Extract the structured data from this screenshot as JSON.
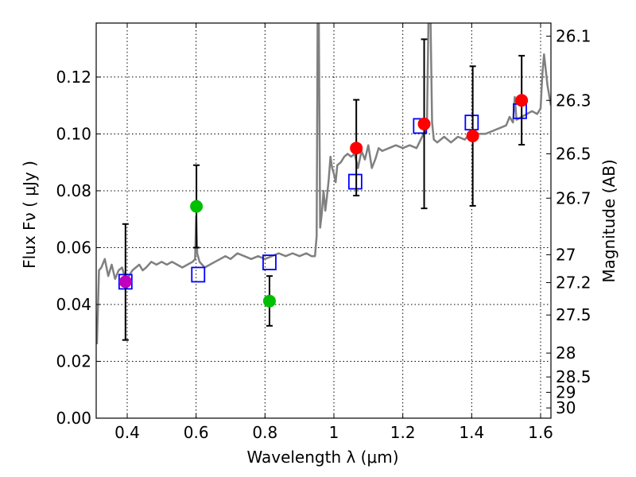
{
  "chart_data": {
    "type": "scatter",
    "xlabel": "Wavelength  λ (μm)",
    "ylabel_left": "Flux  Fν  ( μJy )",
    "ylabel_right": "Magnitude (AB)",
    "xlim": [
      0.31,
      1.63
    ],
    "ylim": [
      0.0,
      0.139
    ],
    "x_ticks": [
      0.4,
      0.6,
      0.8,
      1.0,
      1.2,
      1.4,
      1.6
    ],
    "x_tick_labels": [
      "0.4",
      "0.6",
      "0.8",
      "1",
      "1.2",
      "1.4",
      "1.6"
    ],
    "y_ticks": [
      0.0,
      0.02,
      0.04,
      0.06,
      0.08,
      0.1,
      0.12
    ],
    "y_tick_labels": [
      "0.00",
      "0.02",
      "0.04",
      "0.06",
      "0.08",
      "0.10",
      "0.12"
    ],
    "right_ticks": [
      {
        "label": "26.1",
        "flux": 0.1344
      },
      {
        "label": "26.3",
        "flux": 0.1118
      },
      {
        "label": "26.5",
        "flux": 0.093
      },
      {
        "label": "26.7",
        "flux": 0.0774
      },
      {
        "label": "27",
        "flux": 0.0575
      },
      {
        "label": "27.2",
        "flux": 0.0477
      },
      {
        "label": "27.5",
        "flux": 0.0363
      },
      {
        "label": "28",
        "flux": 0.0229
      },
      {
        "label": "28.5",
        "flux": 0.0145
      },
      {
        "label": "29",
        "flux": 0.0091
      },
      {
        "label": "30",
        "flux": 0.0036
      }
    ],
    "grid": true,
    "observed_points": [
      {
        "x": 0.395,
        "y": 0.048,
        "yerr_low": 0.0275,
        "yerr_high": 0.0683,
        "color": "#bf00bf"
      },
      {
        "x": 0.601,
        "y": 0.0745,
        "yerr_low": 0.06,
        "yerr_high": 0.089,
        "color": "#00bf00"
      },
      {
        "x": 0.813,
        "y": 0.0412,
        "yerr_low": 0.0325,
        "yerr_high": 0.05,
        "color": "#00bf00"
      },
      {
        "x": 1.065,
        "y": 0.095,
        "yerr_low": 0.0783,
        "yerr_high": 0.112,
        "color": "#ff0000"
      },
      {
        "x": 1.262,
        "y": 0.1035,
        "yerr_low": 0.0738,
        "yerr_high": 0.1333,
        "color": "#ff0000"
      },
      {
        "x": 1.403,
        "y": 0.0993,
        "yerr_low": 0.0747,
        "yerr_high": 0.1238,
        "color": "#ff0000"
      },
      {
        "x": 1.545,
        "y": 0.1118,
        "yerr_low": 0.0962,
        "yerr_high": 0.1275,
        "color": "#ff0000"
      }
    ],
    "model_photometry": [
      {
        "x": 0.395,
        "y": 0.048
      },
      {
        "x": 0.606,
        "y": 0.0505
      },
      {
        "x": 0.813,
        "y": 0.0548
      },
      {
        "x": 1.062,
        "y": 0.0832
      },
      {
        "x": 1.25,
        "y": 0.1028
      },
      {
        "x": 1.4,
        "y": 0.104
      },
      {
        "x": 1.54,
        "y": 0.108
      }
    ],
    "model_spectrum": {
      "color": "#808080",
      "x": [
        0.312,
        0.318,
        0.325,
        0.335,
        0.345,
        0.355,
        0.365,
        0.375,
        0.385,
        0.395,
        0.405,
        0.415,
        0.425,
        0.435,
        0.445,
        0.455,
        0.47,
        0.485,
        0.5,
        0.515,
        0.53,
        0.545,
        0.56,
        0.575,
        0.59,
        0.597,
        0.6,
        0.603,
        0.61,
        0.625,
        0.64,
        0.655,
        0.67,
        0.685,
        0.7,
        0.72,
        0.74,
        0.76,
        0.78,
        0.8,
        0.82,
        0.84,
        0.86,
        0.88,
        0.9,
        0.92,
        0.935,
        0.945,
        0.95,
        0.953,
        0.956,
        0.96,
        0.965,
        0.97,
        0.975,
        0.98,
        0.985,
        0.99,
        0.995,
        1.0,
        1.005,
        1.01,
        1.02,
        1.03,
        1.04,
        1.05,
        1.06,
        1.07,
        1.08,
        1.09,
        1.1,
        1.11,
        1.12,
        1.13,
        1.14,
        1.16,
        1.18,
        1.2,
        1.22,
        1.24,
        1.26,
        1.27,
        1.275,
        1.28,
        1.285,
        1.29,
        1.3,
        1.32,
        1.34,
        1.36,
        1.38,
        1.4,
        1.42,
        1.44,
        1.46,
        1.48,
        1.5,
        1.51,
        1.52,
        1.525,
        1.53,
        1.545,
        1.56,
        1.575,
        1.59,
        1.6,
        1.605,
        1.61,
        1.62,
        1.63
      ],
      "y": [
        0.026,
        0.052,
        0.053,
        0.056,
        0.05,
        0.054,
        0.049,
        0.052,
        0.053,
        0.049,
        0.05,
        0.052,
        0.053,
        0.054,
        0.052,
        0.053,
        0.055,
        0.054,
        0.055,
        0.054,
        0.055,
        0.054,
        0.053,
        0.054,
        0.055,
        0.056,
        0.071,
        0.058,
        0.055,
        0.053,
        0.054,
        0.055,
        0.056,
        0.057,
        0.056,
        0.058,
        0.057,
        0.056,
        0.057,
        0.056,
        0.057,
        0.058,
        0.057,
        0.058,
        0.057,
        0.058,
        0.057,
        0.057,
        0.064,
        0.145,
        0.145,
        0.067,
        0.072,
        0.08,
        0.073,
        0.078,
        0.084,
        0.092,
        0.088,
        0.086,
        0.083,
        0.089,
        0.09,
        0.092,
        0.093,
        0.092,
        0.093,
        0.088,
        0.094,
        0.091,
        0.096,
        0.088,
        0.091,
        0.095,
        0.094,
        0.095,
        0.096,
        0.095,
        0.096,
        0.095,
        0.1,
        0.102,
        0.145,
        0.145,
        0.104,
        0.098,
        0.097,
        0.099,
        0.097,
        0.099,
        0.098,
        0.101,
        0.1,
        0.1,
        0.101,
        0.102,
        0.103,
        0.106,
        0.104,
        0.113,
        0.105,
        0.106,
        0.107,
        0.108,
        0.107,
        0.109,
        0.121,
        0.128,
        0.117,
        0.11
      ]
    }
  }
}
